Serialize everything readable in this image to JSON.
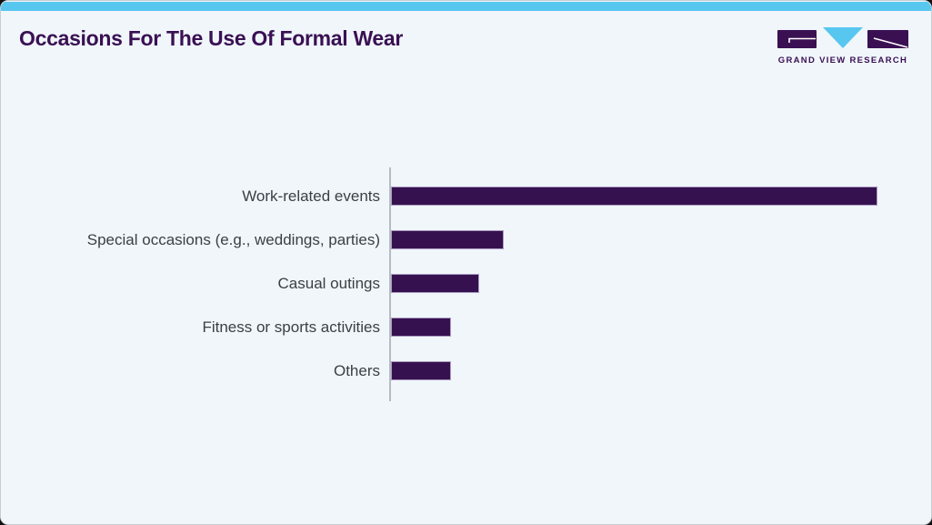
{
  "page": {
    "title": "Occasions For The Use Of Formal Wear"
  },
  "brand": {
    "wordmark": "GRAND VIEW RESEARCH",
    "logo_marks": [
      "g-mark",
      "v-triangle",
      "r-mark"
    ]
  },
  "colors": {
    "card_background": "#f0f6fa",
    "top_strip_blue": "#58c7f0",
    "title_purple": "#3a1053",
    "bar_purple": "#36114f",
    "bar_edge": "#aa9bc0",
    "label_text": "#3b4046",
    "axis_gray": "#b5bbc0"
  },
  "chart_data": {
    "type": "bar",
    "orientation": "horizontal",
    "title": "Occasions For The Use Of Formal Wear",
    "categories": [
      "Work-related events",
      "Special occasions (e.g., weddings, parties)",
      "Casual outings",
      "Fitness or sports activities",
      "Others"
    ],
    "values": [
      535,
      124,
      97,
      66,
      66
    ],
    "values_unit": "bar length in px (no numeric axis or data labels shown)",
    "values_pct_of_max": [
      100,
      23.2,
      18.1,
      12.3,
      12.3
    ],
    "xlabel": "",
    "ylabel": "",
    "grid": false,
    "legend": false,
    "bar_color": "#36114f"
  }
}
